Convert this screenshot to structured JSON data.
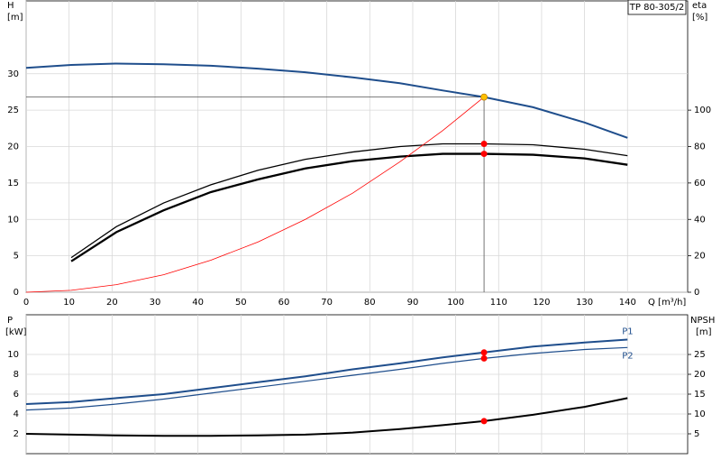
{
  "chart_data": [
    {
      "type": "line",
      "product_label": "TP 80-305/2",
      "y_label": "H",
      "y_unit": "[m]",
      "y2_label": "eta",
      "y2_unit": "[%]",
      "x_label": "Q [m³/h]",
      "x": [
        0,
        10.5,
        21,
        32,
        43,
        54,
        65,
        76,
        87,
        97,
        106.6,
        118,
        130,
        140
      ],
      "xlim": [
        0,
        154
      ],
      "xticks": [
        0,
        10,
        20,
        30,
        40,
        50,
        60,
        70,
        80,
        90,
        100,
        110,
        120,
        130,
        140
      ],
      "ylim": [
        0,
        40
      ],
      "yticks": [
        0,
        5,
        10,
        15,
        20,
        25,
        30
      ],
      "y2lim": [
        0,
        160
      ],
      "y2ticks": [
        0,
        20,
        40,
        60,
        80,
        100
      ],
      "grid": true,
      "duty_point": {
        "x": 106.6,
        "y": 26.8
      },
      "series": [
        {
          "color": "#1f4e8c",
          "line_width": 2,
          "marker": "#ffc000",
          "values": [
            30.8,
            31.2,
            31.4,
            31.3,
            31.1,
            30.7,
            30.2,
            29.5,
            28.7,
            27.7,
            26.8,
            25.4,
            23.3,
            21.2
          ]
        },
        {
          "color": "#000000",
          "line_width": 1.3,
          "axis": "y2",
          "marker": "#ff0000",
          "values": [
            null,
            19,
            36,
            49,
            59,
            67,
            73,
            77,
            80,
            81.5,
            81.5,
            81,
            78.5,
            75
          ]
        },
        {
          "color": "#000000",
          "line_width": 2.3,
          "axis": "y2",
          "marker": "#ff0000",
          "values": [
            null,
            17,
            33,
            45,
            55,
            62,
            68,
            72,
            74.5,
            76,
            76,
            75.5,
            73.5,
            70
          ]
        },
        {
          "color": "#ff0000",
          "line_width": 0.8,
          "values": [
            0,
            0.26,
            1.04,
            2.4,
            4.4,
            6.9,
            10.0,
            13.6,
            17.9,
            22.2,
            26.8,
            null,
            null,
            null
          ]
        }
      ]
    },
    {
      "type": "line",
      "y_label": "P",
      "y_unit": "[kW]",
      "y2_label": "NPSH",
      "y2_unit": "[m]",
      "x": [
        0,
        10.5,
        21,
        32,
        43,
        54,
        65,
        76,
        87,
        97,
        106.6,
        118,
        130,
        140
      ],
      "xlim": [
        0,
        154
      ],
      "xticks": [
        0,
        10,
        20,
        30,
        40,
        50,
        60,
        70,
        80,
        90,
        100,
        110,
        120,
        130,
        140
      ],
      "ylim": [
        0,
        14
      ],
      "yticks": [
        2,
        4,
        6,
        8,
        10
      ],
      "y2lim": [
        0,
        35
      ],
      "y2ticks": [
        5,
        10,
        15,
        20,
        25
      ],
      "grid": true,
      "duty_point": {
        "x": 106.6
      },
      "series": [
        {
          "name": "P1",
          "color": "#1f4e8c",
          "line_width": 2,
          "marker": "#ff0000",
          "values": [
            5.0,
            5.2,
            5.6,
            6.0,
            6.6,
            7.2,
            7.8,
            8.5,
            9.1,
            9.7,
            10.2,
            10.8,
            11.2,
            11.5
          ]
        },
        {
          "name": "P2",
          "color": "#1f4e8c",
          "line_width": 1.2,
          "marker": "#ff0000",
          "values": [
            4.4,
            4.6,
            5.0,
            5.5,
            6.1,
            6.7,
            7.3,
            7.9,
            8.5,
            9.1,
            9.6,
            10.1,
            10.5,
            10.7
          ]
        },
        {
          "color": "#000000",
          "line_width": 2,
          "axis": "y2",
          "marker": "#ff0000",
          "values": [
            5.0,
            4.8,
            4.6,
            4.5,
            4.5,
            4.6,
            4.8,
            5.3,
            6.2,
            7.2,
            8.2,
            9.8,
            11.8,
            14.0
          ]
        }
      ]
    }
  ]
}
